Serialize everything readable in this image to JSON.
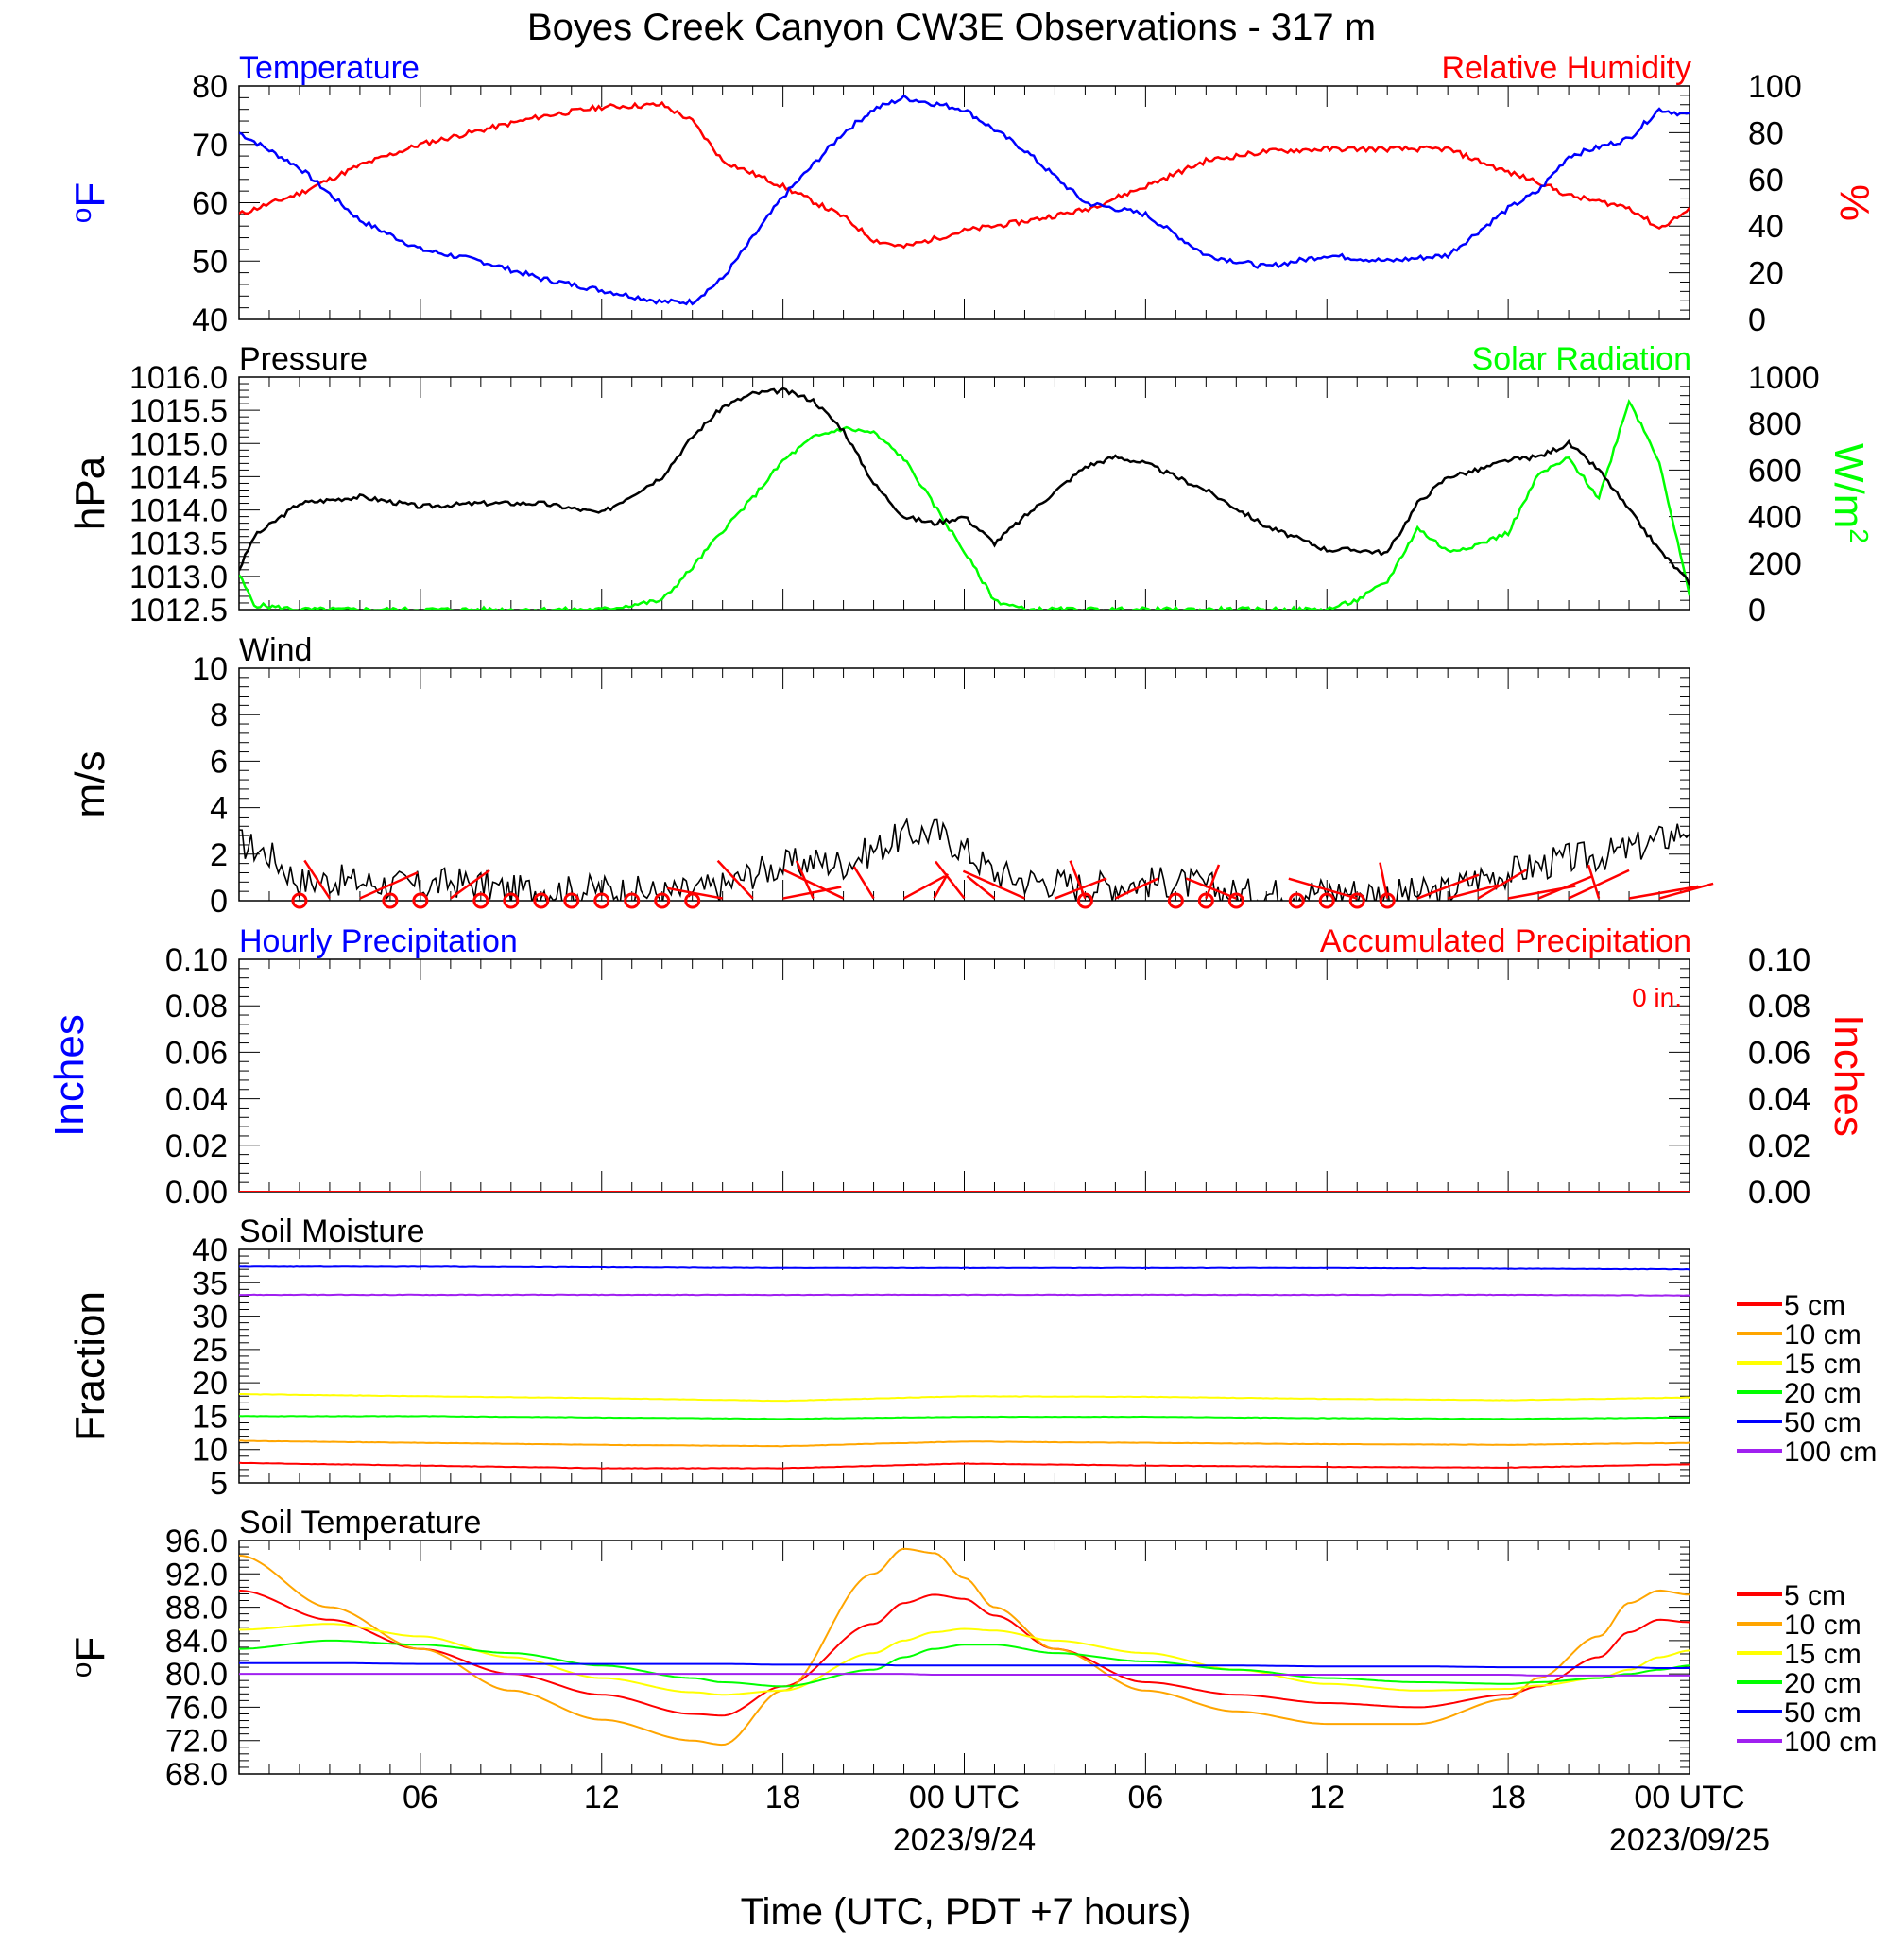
{
  "figure": {
    "title": "Boyes Creek Canyon CW3E Observations - 317 m",
    "xlabel": "Time (UTC, PDT +7 hours)",
    "x_ticks": [
      "06",
      "12",
      "18",
      "00 UTC",
      "06",
      "12",
      "18",
      "00 UTC"
    ],
    "date_labels": [
      "2023/9/24",
      "2023/09/25"
    ],
    "colors": {
      "temperature": "#0000ff",
      "humidity": "#ff0000",
      "pressure": "#000000",
      "solar": "#00ff00",
      "wind": "#000000",
      "barb": "#ff0000"
    }
  },
  "chart_data": [
    {
      "type": "line",
      "panel": "temperature_humidity",
      "left_title": "Temperature",
      "right_title": "Relative Humidity",
      "ylabel": "oF",
      "y2label": "%",
      "ylim": [
        40,
        80
      ],
      "y2lim": [
        0,
        100
      ],
      "yticks": [
        "80",
        "70",
        "60",
        "50",
        "40"
      ],
      "y2ticks": [
        "100",
        "80",
        "60",
        "40",
        "20",
        "0"
      ],
      "x_hours": [
        0,
        2,
        4,
        6,
        8,
        10,
        12,
        14,
        15,
        16,
        18,
        20,
        21,
        22,
        24,
        26,
        28,
        30,
        32,
        34,
        36,
        38,
        40,
        42,
        43,
        44,
        46,
        47,
        48
      ],
      "series": [
        {
          "name": "Temperature",
          "axis": "left",
          "values": [
            72,
            66,
            57,
            52,
            50,
            47,
            45,
            43,
            43,
            47,
            61,
            72,
            76,
            78,
            76,
            69,
            60,
            58,
            51,
            49,
            51,
            50,
            51,
            59,
            62,
            68,
            71,
            76,
            75
          ]
        },
        {
          "name": "Relative Humidity",
          "axis": "right",
          "values": [
            45,
            54,
            66,
            75,
            81,
            87,
            91,
            92,
            85,
            68,
            57,
            44,
            34,
            31,
            38,
            42,
            47,
            57,
            68,
            72,
            73,
            73,
            73,
            63,
            59,
            53,
            48,
            39,
            47
          ]
        }
      ]
    },
    {
      "type": "line",
      "panel": "pressure_solar",
      "left_title": "Pressure",
      "right_title": "Solar Radiation",
      "ylabel": "hPa",
      "y2label": "W/m2",
      "ylim": [
        1012.5,
        1016.0
      ],
      "y2lim": [
        0,
        1000
      ],
      "yticks": [
        "1016.0",
        "1015.5",
        "1015.0",
        "1014.5",
        "1014.0",
        "1013.5",
        "1013.0",
        "1012.5"
      ],
      "y2ticks": [
        "1000",
        "800",
        "600",
        "400",
        "200",
        "0"
      ],
      "x_hours": [
        0,
        0.5,
        2,
        4,
        6,
        8,
        10,
        12,
        14,
        15,
        16,
        17,
        18,
        19,
        20,
        21,
        22,
        23,
        24,
        25,
        26,
        28,
        29,
        30,
        32,
        34,
        36,
        37,
        38,
        39,
        40,
        41,
        42,
        43,
        44,
        45,
        46,
        47,
        48
      ],
      "series": [
        {
          "name": "Pressure",
          "axis": "left",
          "values": [
            1013.1,
            1013.6,
            1014.1,
            1014.2,
            1014.05,
            1014.1,
            1014.1,
            1013.95,
            1014.5,
            1015.1,
            1015.55,
            1015.75,
            1015.8,
            1015.65,
            1015.2,
            1014.4,
            1013.9,
            1013.8,
            1013.9,
            1013.5,
            1013.9,
            1014.65,
            1014.8,
            1014.7,
            1014.3,
            1013.75,
            1013.4,
            1013.4,
            1013.35,
            1014.1,
            1014.5,
            1014.6,
            1014.75,
            1014.8,
            1015.0,
            1014.6,
            1014.0,
            1013.4,
            1012.9
          ]
        },
        {
          "name": "Solar Radiation",
          "axis": "right",
          "values": [
            150,
            20,
            0,
            0,
            0,
            0,
            0,
            0,
            40,
            180,
            340,
            480,
            640,
            740,
            780,
            760,
            650,
            450,
            250,
            40,
            0,
            0,
            0,
            0,
            0,
            0,
            0,
            40,
            120,
            350,
            250,
            280,
            330,
            580,
            650,
            480,
            900,
            640,
            60
          ]
        }
      ]
    },
    {
      "type": "line",
      "panel": "wind",
      "left_title": "Wind",
      "ylabel": "m/s",
      "ylim": [
        0,
        10
      ],
      "yticks": [
        "10",
        "8",
        "6",
        "4",
        "2",
        "0"
      ],
      "x_hours": [
        0,
        1,
        2,
        3,
        4,
        5,
        6,
        7,
        8,
        9,
        10,
        11,
        12,
        13,
        14,
        15,
        16,
        17,
        18,
        19,
        20,
        21,
        22,
        23,
        24,
        25,
        26,
        27,
        28,
        29,
        30,
        31,
        32,
        33,
        34,
        35,
        36,
        37,
        38,
        39,
        40,
        41,
        42,
        43,
        44,
        45,
        46,
        47,
        48
      ],
      "series": [
        {
          "name": "Wind speed",
          "axis": "left",
          "values": [
            2.5,
            2.0,
            0.8,
            0.9,
            0.8,
            0.7,
            0.6,
            0.8,
            0.7,
            0.4,
            0.5,
            0.4,
            0.5,
            0.4,
            0.3,
            0.4,
            0.6,
            1.2,
            1.5,
            1.7,
            1.6,
            2.2,
            2.8,
            3.0,
            2.2,
            1.2,
            0.9,
            0.8,
            0.6,
            0.7,
            0.8,
            0.8,
            0.6,
            0.3,
            0.3,
            0.4,
            0.4,
            0.4,
            0.3,
            0.3,
            0.4,
            1.0,
            1.2,
            1.5,
            1.8,
            1.9,
            2.2,
            2.6,
            3.2
          ]
        }
      ],
      "barbs": {
        "calm_hours": [
          2,
          5,
          6,
          8,
          9,
          10,
          11,
          12,
          13,
          14,
          15,
          20,
          23,
          24,
          25,
          26,
          27,
          28,
          29,
          30,
          31,
          32,
          33,
          34,
          35,
          36,
          37,
          38,
          39,
          40,
          41,
          42,
          43,
          44,
          45,
          46,
          47,
          48
        ],
        "shaft_hours": [
          3,
          4,
          7,
          16,
          17,
          18,
          19,
          20,
          21,
          22,
          23,
          24,
          25,
          26,
          27,
          28,
          29,
          32,
          33,
          37,
          38,
          39,
          40,
          41,
          42,
          43,
          44,
          45,
          46,
          47
        ],
        "circle_hours": [
          2,
          5,
          6,
          8,
          9,
          10,
          11,
          12,
          13,
          14,
          15,
          28,
          31,
          32,
          33,
          35,
          36,
          37,
          38
        ]
      }
    },
    {
      "type": "line",
      "panel": "precipitation",
      "left_title": "Hourly Precipitation",
      "right_title": "Accumulated Precipitation",
      "annotation": "0 in.",
      "ylabel": "Inches",
      "y2label": "Inches",
      "ylim": [
        0,
        0.1
      ],
      "y2lim": [
        0,
        0.1
      ],
      "yticks": [
        "0.10",
        "0.08",
        "0.06",
        "0.04",
        "0.02",
        "0.00"
      ],
      "y2ticks": [
        "0.10",
        "0.08",
        "0.06",
        "0.04",
        "0.02",
        "0.00"
      ],
      "x_hours": [
        0,
        48
      ],
      "series": [
        {
          "name": "Hourly Precipitation",
          "axis": "left",
          "values": [
            0,
            0
          ]
        },
        {
          "name": "Accumulated Precipitation",
          "axis": "right",
          "values": [
            0,
            0
          ]
        }
      ]
    },
    {
      "type": "line",
      "panel": "soil_moisture",
      "left_title": "Soil Moisture",
      "ylabel": "Fraction",
      "ylim": [
        5,
        40
      ],
      "yticks": [
        "40",
        "35",
        "30",
        "25",
        "20",
        "15",
        "10",
        "5"
      ],
      "legend": [
        "5 cm",
        "10 cm",
        "15 cm",
        "20 cm",
        "50 cm",
        "100 cm"
      ],
      "x_hours": [
        0,
        6,
        12,
        18,
        24,
        30,
        36,
        42,
        48
      ],
      "series": [
        {
          "name": "5 cm",
          "color": "#ff0000",
          "values": [
            8.0,
            7.6,
            7.2,
            7.2,
            7.9,
            7.6,
            7.4,
            7.3,
            7.8
          ]
        },
        {
          "name": "10 cm",
          "color": "#ffa500",
          "values": [
            11.3,
            11.0,
            10.7,
            10.5,
            11.2,
            11.0,
            10.8,
            10.7,
            11.0
          ]
        },
        {
          "name": "15 cm",
          "color": "#ffff00",
          "values": [
            18.3,
            18.0,
            17.7,
            17.3,
            18.0,
            17.9,
            17.6,
            17.4,
            17.8
          ]
        },
        {
          "name": "20 cm",
          "color": "#00ff00",
          "values": [
            15.0,
            15.0,
            14.8,
            14.6,
            14.9,
            14.9,
            14.7,
            14.6,
            14.8
          ]
        },
        {
          "name": "50 cm",
          "color": "#0000ff",
          "values": [
            37.4,
            37.4,
            37.3,
            37.2,
            37.2,
            37.2,
            37.2,
            37.1,
            37.0
          ]
        },
        {
          "name": "100 cm",
          "color": "#a020f0",
          "values": [
            33.2,
            33.2,
            33.2,
            33.2,
            33.2,
            33.2,
            33.2,
            33.2,
            33.1
          ]
        }
      ]
    },
    {
      "type": "line",
      "panel": "soil_temperature",
      "left_title": "Soil Temperature",
      "ylabel": "oF",
      "ylim": [
        68,
        96
      ],
      "yticks": [
        "96.0",
        "92.0",
        "88.0",
        "84.0",
        "80.0",
        "76.0",
        "72.0",
        "68.0"
      ],
      "legend": [
        "5 cm",
        "10 cm",
        "15 cm",
        "20 cm",
        "50 cm",
        "100 cm"
      ],
      "x_hours": [
        0,
        3,
        6,
        9,
        12,
        15,
        16,
        18,
        21,
        22,
        23,
        24,
        25,
        27,
        30,
        33,
        36,
        39,
        42,
        43,
        45,
        46,
        47,
        48
      ],
      "series": [
        {
          "name": "5 cm",
          "color": "#ff0000",
          "values": [
            90.0,
            86.5,
            83.0,
            80.0,
            77.5,
            75.2,
            75.0,
            78.5,
            86.0,
            88.5,
            89.5,
            89.0,
            87.0,
            83.0,
            79.0,
            77.5,
            76.5,
            76.0,
            77.5,
            78.5,
            82.0,
            85.0,
            86.5,
            86.2
          ]
        },
        {
          "name": "10 cm",
          "color": "#ffa500",
          "values": [
            94.2,
            88.0,
            83.0,
            78.0,
            74.5,
            72.0,
            71.5,
            78.0,
            92.0,
            95.0,
            94.5,
            91.5,
            88.0,
            83.0,
            78.0,
            75.5,
            74.0,
            74.0,
            77.0,
            79.5,
            84.5,
            88.5,
            90.0,
            89.5
          ]
        },
        {
          "name": "15 cm",
          "color": "#ffff00",
          "values": [
            85.3,
            86.0,
            84.5,
            82.0,
            79.5,
            77.8,
            77.5,
            78.0,
            82.5,
            84.0,
            85.0,
            85.4,
            85.2,
            84.0,
            82.5,
            80.5,
            78.8,
            78.0,
            78.2,
            78.6,
            79.5,
            80.5,
            82.0,
            82.8
          ]
        },
        {
          "name": "20 cm",
          "color": "#00ff00",
          "values": [
            83.0,
            84.0,
            83.5,
            82.5,
            81.0,
            79.5,
            79.0,
            78.5,
            80.5,
            82.0,
            83.0,
            83.5,
            83.5,
            82.5,
            81.5,
            80.5,
            79.5,
            79.0,
            78.8,
            79.0,
            79.5,
            80.0,
            80.5,
            81.0
          ]
        },
        {
          "name": "50 cm",
          "color": "#0000ff",
          "values": [
            81.3,
            81.3,
            81.2,
            81.2,
            81.2,
            81.2,
            81.2,
            81.1,
            81.1,
            81.0,
            81.0,
            81.0,
            81.0,
            81.0,
            81.0,
            81.0,
            80.9,
            80.9,
            80.8,
            80.8,
            80.8,
            80.8,
            80.7,
            80.7
          ]
        },
        {
          "name": "100 cm",
          "color": "#a020f0",
          "values": [
            80.0,
            80.0,
            80.0,
            80.0,
            80.0,
            80.0,
            80.0,
            80.0,
            80.0,
            80.0,
            79.9,
            79.9,
            79.9,
            79.9,
            79.9,
            79.9,
            79.9,
            79.9,
            79.9,
            79.8,
            79.8,
            79.8,
            79.8,
            79.8
          ]
        }
      ]
    }
  ]
}
